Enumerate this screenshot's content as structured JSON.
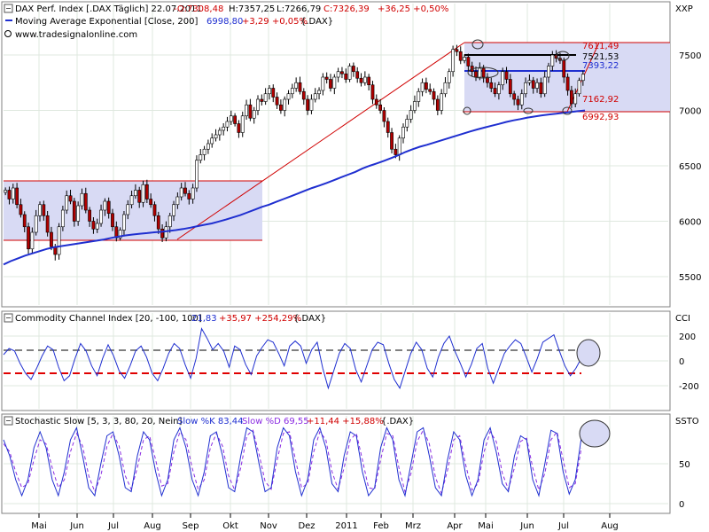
{
  "chart_data": [
    {
      "type": "candlestick",
      "panel": "price",
      "title": "DAX Perf. Index [.DAX  Täglich] 22.07.2011",
      "ohlc_text": {
        "o": "-O:7308,48",
        "h": "H:7357,25",
        "l": "L:7266,79",
        "c": "C:7326,39",
        "change": "+36,25 +0,50%"
      },
      "indicator_label": "Moving Average Exponential [Close, 200]",
      "indicator_value": "6998,80",
      "indicator_change": "+3,29 +0,05%",
      "indicator_symbol": "{.DAX}",
      "watermark": "www.tradesignalonline.com",
      "axis_label": "XXP",
      "yticks": [
        "5500",
        "6000",
        "6500",
        "7000",
        "7500"
      ],
      "ylim": [
        5170,
        7850
      ],
      "price_levels": [
        {
          "label": "7611,49",
          "value": 7611.49,
          "color": "#d00000"
        },
        {
          "label": "7521,53",
          "value": 7521.53,
          "color": "#000000"
        },
        {
          "label": "7393,22",
          "value": 7393.22,
          "color": "#1f2fd0"
        },
        {
          "label": "7162,92",
          "value": 7162.92,
          "color": "#d00000"
        },
        {
          "label": "6992,93",
          "value": 6992.93,
          "color": "#d00000"
        }
      ],
      "close_series": [
        6280,
        6200,
        6300,
        6150,
        6060,
        5950,
        5750,
        5900,
        6050,
        6150,
        6050,
        5900,
        5770,
        5700,
        5950,
        6100,
        6230,
        6180,
        6000,
        6140,
        6250,
        6100,
        6000,
        5930,
        5980,
        6100,
        6180,
        6070,
        5950,
        5850,
        5920,
        6060,
        6150,
        6230,
        6280,
        6170,
        6330,
        6200,
        6150,
        6050,
        5930,
        5850,
        5950,
        6050,
        6150,
        6220,
        6300,
        6250,
        6200,
        6300,
        6550,
        6600,
        6650,
        6700,
        6750,
        6780,
        6820,
        6850,
        6900,
        6950,
        6880,
        6800,
        6950,
        7050,
        6930,
        7000,
        7100,
        7080,
        7150,
        7200,
        7120,
        7050,
        7000,
        7100,
        7150,
        7200,
        7250,
        7170,
        7100,
        7000,
        7100,
        7150,
        7180,
        7300,
        7280,
        7200,
        7300,
        7350,
        7330,
        7280,
        7400,
        7350,
        7290,
        7250,
        7300,
        7230,
        7100,
        7050,
        7000,
        6900,
        6800,
        6650,
        6600,
        6750,
        6850,
        6920,
        7000,
        7080,
        7170,
        7250,
        7190,
        7170,
        7100,
        7000,
        7150,
        7250,
        7350,
        7550,
        7530,
        7450,
        7480,
        7400,
        7350,
        7300,
        7380,
        7300,
        7250,
        7200,
        7150,
        7230,
        7350,
        7280,
        7150,
        7100,
        7050,
        7150,
        7250,
        7270,
        7200,
        7250,
        7150,
        7300,
        7400,
        7500,
        7470,
        7450,
        7300,
        7180,
        7060,
        7150,
        7270,
        7326
      ],
      "ema_series": [
        5610,
        5640,
        5665,
        5690,
        5710,
        5730,
        5750,
        5765,
        5775,
        5785,
        5795,
        5805,
        5815,
        5825,
        5835,
        5850,
        5862,
        5872,
        5880,
        5887,
        5893,
        5900,
        5905,
        5912,
        5920,
        5930,
        5942,
        5955,
        5968,
        5980,
        5998,
        6015,
        6035,
        6055,
        6080,
        6105,
        6130,
        6150,
        6175,
        6200,
        6225,
        6250,
        6275,
        6300,
        6322,
        6345,
        6370,
        6395,
        6420,
        6445,
        6475,
        6500,
        6522,
        6545,
        6570,
        6595,
        6625,
        6650,
        6672,
        6690,
        6710,
        6730,
        6750,
        6770,
        6790,
        6810,
        6828,
        6845,
        6862,
        6878,
        6895,
        6910,
        6922,
        6935,
        6945,
        6955,
        6963,
        6970,
        6978,
        6985,
        6993,
        6999
      ],
      "annotations": [
        {
          "kind": "channel",
          "from": "Mai 2010",
          "to": "Okt 2010",
          "top": 6380,
          "bottom": 5840
        },
        {
          "kind": "channel",
          "from": "Apr 2011",
          "to": "Jul 2011",
          "top": 7611.49,
          "bottom": 6992.93
        }
      ]
    },
    {
      "type": "line",
      "panel": "cci",
      "title": "Commodity Channel Index [20, -100, 100]",
      "value": "21,83",
      "change": "+35,97 +254,29%",
      "symbol": "{.DAX}",
      "axis_label": "CCI",
      "yticks": [
        "200",
        "0",
        "-200"
      ],
      "ylim": [
        -300,
        300
      ],
      "reference_lines": [
        100,
        -100
      ],
      "series": [
        {
          "name": "CCI",
          "values": [
            50,
            100,
            80,
            -20,
            -100,
            -150,
            -60,
            40,
            120,
            90,
            -50,
            -160,
            -120,
            20,
            140,
            80,
            -40,
            -120,
            20,
            130,
            40,
            -80,
            -140,
            -40,
            80,
            120,
            30,
            -100,
            -160,
            -60,
            60,
            140,
            100,
            -30,
            -140,
            20,
            260,
            180,
            90,
            140,
            80,
            -50,
            120,
            90,
            -30,
            -110,
            40,
            110,
            170,
            150,
            60,
            -40,
            120,
            160,
            120,
            -20,
            90,
            150,
            -60,
            -220,
            -80,
            60,
            140,
            100,
            -70,
            -170,
            -40,
            90,
            150,
            130,
            -20,
            -150,
            -220,
            -80,
            60,
            150,
            90,
            -60,
            -130,
            30,
            140,
            200,
            80,
            -20,
            -130,
            -30,
            100,
            140,
            -60,
            -180,
            -60,
            60,
            120,
            170,
            140,
            30,
            -90,
            20,
            150,
            180,
            210,
            80,
            -40,
            -120,
            -60,
            22
          ]
        }
      ]
    },
    {
      "type": "line",
      "panel": "stochastic",
      "title": "Stochastic Slow [5, 3, 3, 80, 20, Nein]",
      "k_label": "Slow %K 83,44",
      "d_label": "Slow %D 69,55",
      "change": "+11,44 +15,88%",
      "symbol": "{.DAX}",
      "axis_label": "SSTO",
      "yticks": [
        "50",
        "0"
      ],
      "ylim": [
        -10,
        110
      ],
      "series": [
        {
          "name": "Slow %K",
          "values": [
            80,
            60,
            30,
            10,
            30,
            70,
            90,
            70,
            30,
            10,
            40,
            80,
            95,
            60,
            20,
            10,
            50,
            85,
            90,
            60,
            20,
            15,
            60,
            90,
            80,
            40,
            10,
            30,
            80,
            95,
            70,
            30,
            10,
            40,
            85,
            90,
            60,
            20,
            15,
            60,
            95,
            90,
            50,
            15,
            20,
            70,
            95,
            85,
            40,
            10,
            30,
            80,
            95,
            70,
            25,
            15,
            60,
            90,
            85,
            40,
            10,
            20,
            70,
            95,
            80,
            30,
            10,
            50,
            90,
            95,
            60,
            20,
            10,
            55,
            90,
            80,
            35,
            10,
            30,
            80,
            95,
            65,
            25,
            15,
            60,
            85,
            80,
            30,
            10,
            50,
            92,
            88,
            40,
            12,
            30,
            83
          ]
        },
        {
          "name": "Slow %D",
          "values": [
            75,
            65,
            40,
            20,
            25,
            55,
            80,
            75,
            45,
            20,
            30,
            65,
            88,
            72,
            35,
            15,
            35,
            72,
            88,
            72,
            35,
            18,
            45,
            80,
            85,
            55,
            22,
            25,
            65,
            90,
            80,
            45,
            18,
            30,
            70,
            88,
            72,
            35,
            17,
            45,
            85,
            92,
            62,
            28,
            18,
            55,
            88,
            90,
            55,
            20,
            25,
            65,
            90,
            80,
            40,
            18,
            45,
            80,
            88,
            55,
            20,
            18,
            55,
            88,
            85,
            45,
            15,
            38,
            78,
            92,
            75,
            33,
            13,
            42,
            80,
            85,
            48,
            17,
            25,
            65,
            90,
            78,
            38,
            18,
            45,
            78,
            82,
            45,
            17,
            38,
            80,
            90,
            55,
            20,
            25,
            70
          ]
        }
      ]
    }
  ],
  "x_axis": {
    "labels": [
      "Mai",
      "Jun",
      "Jul",
      "Aug",
      "Sep",
      "Okt",
      "Nov",
      "Dez",
      "2011",
      "Feb",
      "Mrz",
      "Apr",
      "Mai",
      "Jun",
      "Jul",
      "Aug"
    ]
  },
  "colors": {
    "candle_up": "#ffffff",
    "candle_down": "#b00000",
    "ema": "#1f2fd0",
    "channel_fill": "#d8daf4",
    "trend": "#d00000",
    "grid": "#c8e0c8",
    "k": "#1f2fd0",
    "d": "#8a2be2"
  }
}
